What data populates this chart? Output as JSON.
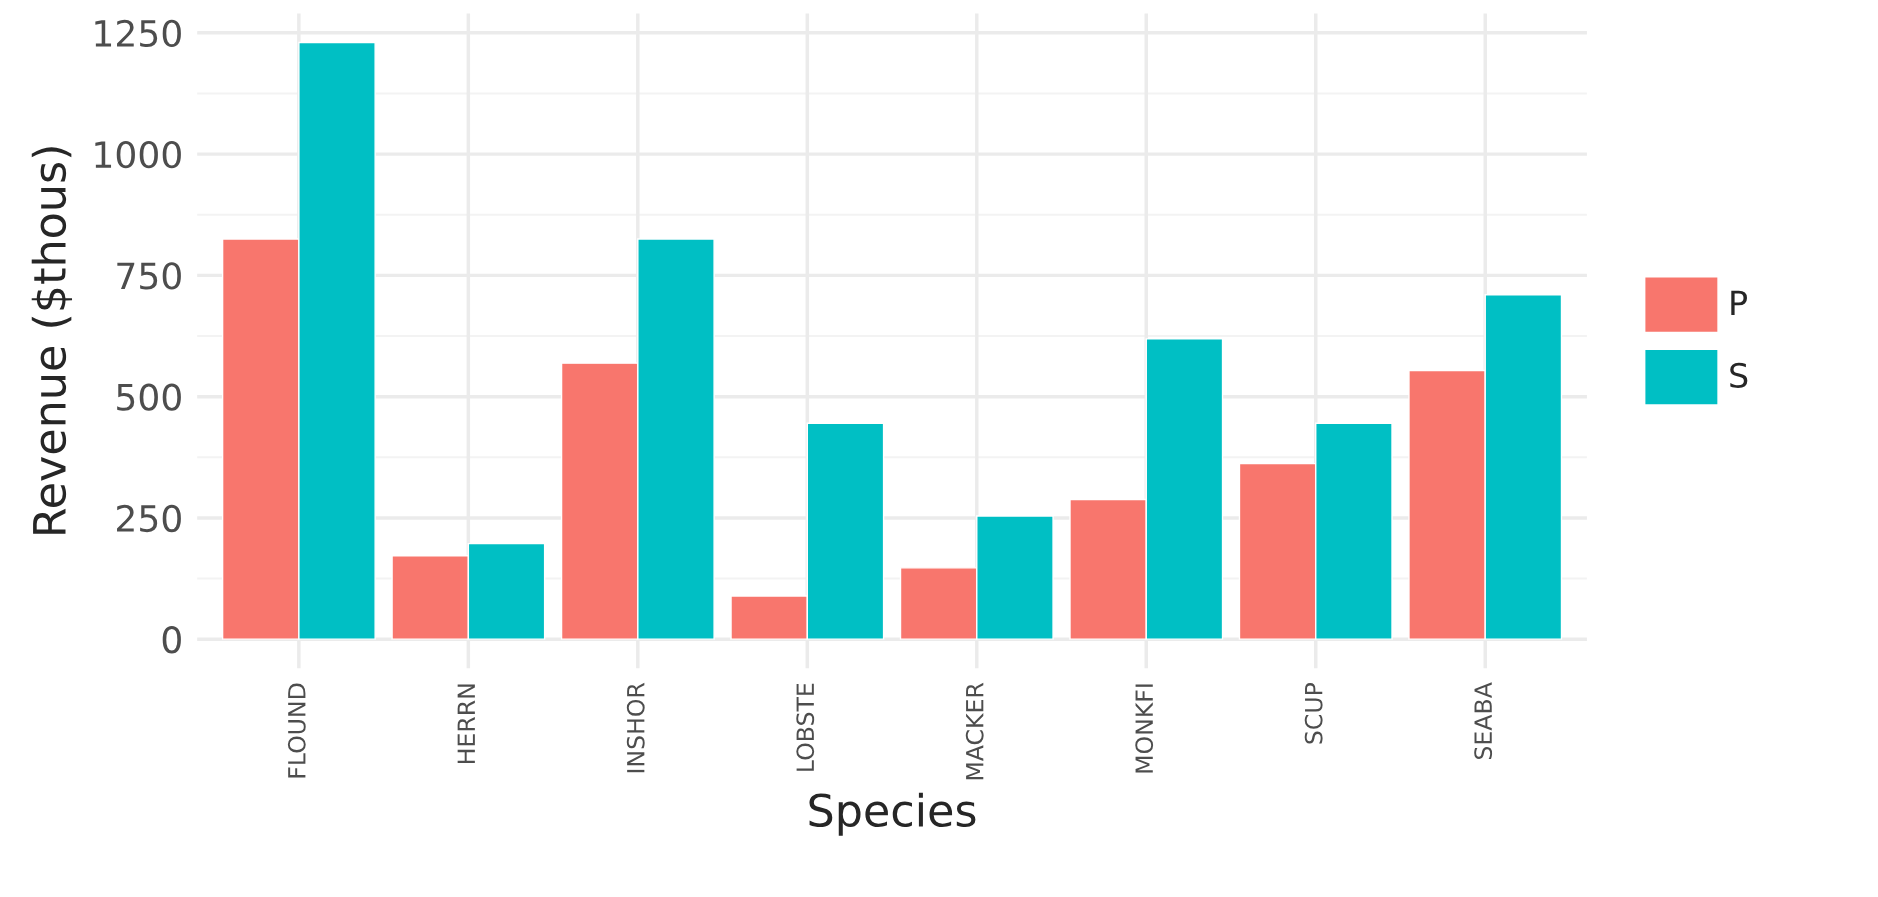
{
  "chart_data": {
    "type": "bar",
    "xlabel": "Species",
    "ylabel": "Revenue ($thous)",
    "categories": [
      "FLOUND",
      "HERRN",
      "INSHOR",
      "LOBSTE",
      "MACKER",
      "MONKFI",
      "SCUP",
      "SEABA"
    ],
    "series": [
      {
        "name": "P",
        "color": "#f8766d",
        "values": [
          825,
          172,
          569,
          89,
          147,
          288,
          362,
          554
        ]
      },
      {
        "name": "S",
        "color": "#00bfc4",
        "values": [
          1230,
          197,
          825,
          445,
          254,
          619,
          445,
          710
        ]
      }
    ],
    "ylim": [
      -60,
      1290
    ],
    "yticks": [
      0,
      250,
      500,
      750,
      1000,
      1250
    ],
    "grid": true,
    "legend": "right"
  }
}
